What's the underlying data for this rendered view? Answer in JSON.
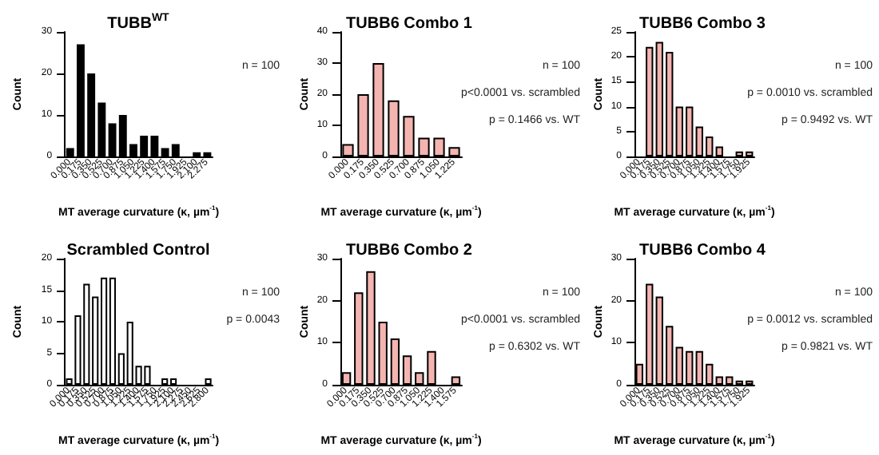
{
  "chart_data": [
    {
      "type": "bar",
      "title": "TUBB$^{WT}$",
      "xlabel": "MT average curvature (κ, µm$^{-1}$)",
      "ylabel": "Count",
      "categories": [
        "0.000",
        "0.175",
        "0.350",
        "0.525",
        "0.700",
        "0.875",
        "1.050",
        "1.225",
        "1.400",
        "1.575",
        "1.750",
        "1.925",
        "2.100",
        "2.275"
      ],
      "values": [
        2,
        27,
        20,
        13,
        8,
        10,
        3,
        5,
        5,
        2,
        3,
        0,
        1,
        1
      ],
      "color": "#000000",
      "ylim": [
        0,
        30
      ],
      "yticks": [
        0,
        10,
        20,
        30
      ],
      "annotations": [
        "n = 100"
      ]
    },
    {
      "type": "bar",
      "title": "TUBB6 Combo 1",
      "xlabel": "MT average curvature (κ, µm$^{-1}$)",
      "ylabel": "Count",
      "categories": [
        "0.000",
        "0.175",
        "0.350",
        "0.525",
        "0.700",
        "0.875",
        "1.050",
        "1.225"
      ],
      "values": [
        4,
        20,
        30,
        18,
        13,
        6,
        6,
        3
      ],
      "color": "#f4b4b0",
      "ylim": [
        0,
        40
      ],
      "yticks": [
        0,
        10,
        20,
        30,
        40
      ],
      "annotations": [
        "n = 100",
        "p<0.0001 vs. scrambled",
        "p = 0.1466 vs. WT"
      ]
    },
    {
      "type": "bar",
      "title": "TUBB6 Combo 3",
      "xlabel": "MT average curvature (κ, µm$^{-1}$)",
      "ylabel": "Count",
      "categories": [
        "0.000",
        "0.175",
        "0.350",
        "0.525",
        "0.700",
        "0.875",
        "1.050",
        "1.225",
        "1.400",
        "1.575",
        "1.750",
        "1.925"
      ],
      "values": [
        0,
        22,
        23,
        21,
        10,
        10,
        6,
        4,
        2,
        0,
        1,
        1
      ],
      "color": "#f4b4b0",
      "ylim": [
        0,
        25
      ],
      "yticks": [
        0,
        5,
        10,
        15,
        20,
        25
      ],
      "annotations": [
        "n = 100",
        "p = 0.0010 vs. scrambled",
        "p = 0.9492 vs. WT"
      ]
    },
    {
      "type": "bar",
      "title": "Scrambled Control",
      "xlabel": "MT average curvature (κ, µm$^{-1}$)",
      "ylabel": "Count",
      "categories": [
        "0.000",
        "0.175",
        "0.350",
        "0.525",
        "0.700",
        "0.875",
        "1.050",
        "1.225",
        "1.400",
        "1.575",
        "1.750",
        "1.925",
        "2.100",
        "2.275",
        "2.450",
        "2.625",
        "2.800"
      ],
      "values": [
        1,
        11,
        16,
        14,
        17,
        17,
        5,
        10,
        3,
        3,
        0,
        1,
        1,
        0,
        0,
        0,
        1
      ],
      "color": "#ffffff",
      "ylim": [
        0,
        20
      ],
      "yticks": [
        0,
        5,
        10,
        15,
        20
      ],
      "annotations": [
        "n = 100",
        "p = 0.0043"
      ]
    },
    {
      "type": "bar",
      "title": "TUBB6 Combo 2",
      "xlabel": "MT average curvature (κ, µm$^{-1}$)",
      "ylabel": "Count",
      "categories": [
        "0.000",
        "0.175",
        "0.350",
        "0.525",
        "0.700",
        "0.875",
        "1.050",
        "1.225",
        "1.400",
        "1.575"
      ],
      "values": [
        3,
        22,
        27,
        15,
        11,
        7,
        3,
        8,
        0,
        2
      ],
      "color": "#f4b4b0",
      "ylim": [
        0,
        30
      ],
      "yticks": [
        0,
        10,
        20,
        30
      ],
      "annotations": [
        "n = 100",
        "p<0.0001 vs. scrambled",
        "p = 0.6302 vs. WT"
      ]
    },
    {
      "type": "bar",
      "title": "TUBB6 Combo 4",
      "xlabel": "MT average curvature (κ, µm$^{-1}$)",
      "ylabel": "Count",
      "categories": [
        "0.000",
        "0.175",
        "0.350",
        "0.525",
        "0.700",
        "0.875",
        "1.050",
        "1.225",
        "1.400",
        "1.575",
        "1.750",
        "1.925"
      ],
      "values": [
        5,
        24,
        21,
        14,
        9,
        8,
        8,
        5,
        2,
        2,
        1,
        1
      ],
      "color": "#f4b4b0",
      "ylim": [
        0,
        30
      ],
      "yticks": [
        0,
        10,
        20,
        30
      ],
      "annotations": [
        "n = 100",
        "p = 0.0012 vs. scrambled",
        "p = 0.9821 vs. WT"
      ]
    }
  ]
}
